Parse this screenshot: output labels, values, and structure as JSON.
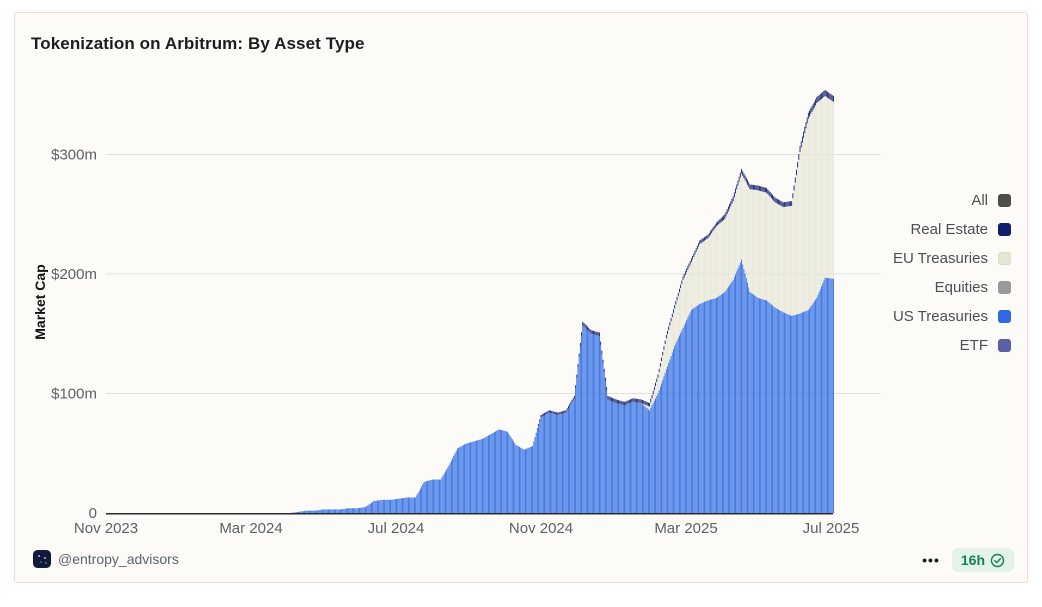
{
  "card": {
    "title": "Tokenization on Arbitrum: By Asset Type",
    "footer": {
      "handle": "@entropy_advisors",
      "more_label": "•••",
      "age_badge": "16h"
    }
  },
  "legend": {
    "position": "right",
    "items": [
      {
        "label": "All",
        "color": "#4d4d4d"
      },
      {
        "label": "Real Estate",
        "color": "#101c6e"
      },
      {
        "label": "EU Treasuries",
        "color": "#e6e5d3"
      },
      {
        "label": "Equities",
        "color": "#9a9a9a"
      },
      {
        "label": "US Treasuries",
        "color": "#2d6ae3"
      },
      {
        "label": "ETF",
        "color": "#5a5fa9"
      }
    ]
  },
  "chart_data": {
    "type": "bar",
    "stacked": true,
    "title": "Tokenization on Arbitrum: By Asset Type",
    "ylabel": "Market Cap",
    "unit": "USD millions",
    "grid": "horizontal",
    "ylim": [
      0,
      375
    ],
    "x_unit": "weeks from Nov 2023 (values in $m, weekly estimates)",
    "x_ticks": [
      {
        "label": "Nov 2023",
        "month_offset": 0
      },
      {
        "label": "Mar 2024",
        "month_offset": 4
      },
      {
        "label": "Jul 2024",
        "month_offset": 8
      },
      {
        "label": "Nov 2024",
        "month_offset": 12
      },
      {
        "label": "Mar 2025",
        "month_offset": 16
      },
      {
        "label": "Jul 2025",
        "month_offset": 20
      }
    ],
    "y_ticks": [
      {
        "label": "$300m",
        "value": 300
      },
      {
        "label": "$200m",
        "value": 200
      },
      {
        "label": "$100m",
        "value": 100
      },
      {
        "label": "0",
        "value": 0
      }
    ],
    "series": [
      {
        "name": "US Treasuries",
        "color": "#2d6ae3",
        "values": [
          0,
          0,
          0,
          0,
          0,
          0,
          0,
          0,
          0,
          0,
          0,
          0,
          0,
          0,
          0,
          0,
          0,
          0,
          0,
          0,
          0,
          0,
          0,
          1,
          2,
          2,
          3,
          3,
          3,
          4,
          4,
          5,
          10,
          11,
          11,
          12,
          13,
          13,
          26,
          28,
          28,
          40,
          54,
          58,
          60,
          62,
          66,
          70,
          68,
          57,
          53,
          56,
          80,
          84,
          82,
          84,
          96,
          157,
          150,
          148,
          95,
          92,
          90,
          93,
          92,
          86,
          100,
          120,
          140,
          155,
          170,
          175,
          178,
          180,
          185,
          195,
          212,
          185,
          180,
          178,
          172,
          168,
          165,
          167,
          170,
          180,
          197,
          196
        ]
      },
      {
        "name": "EU Treasuries",
        "color": "#e8e7d8",
        "values": [
          0,
          0,
          0,
          0,
          0,
          0,
          0,
          0,
          0,
          0,
          0,
          0,
          0,
          0,
          0,
          0,
          0,
          0,
          0,
          0,
          0,
          0,
          0,
          0,
          0,
          0,
          0,
          0,
          0,
          0,
          0,
          0,
          0,
          0,
          0,
          0,
          0,
          0,
          0,
          0,
          0,
          0,
          0,
          0,
          0,
          0,
          0,
          0,
          0,
          0,
          0,
          0,
          0,
          0,
          0,
          0,
          0,
          0,
          0,
          0,
          0,
          0,
          0,
          0,
          0,
          3,
          13,
          26,
          31,
          40,
          40,
          50,
          52,
          60,
          61,
          66,
          72,
          86,
          90,
          90,
          88,
          88,
          92,
          135,
          160,
          163,
          152,
          148
        ]
      },
      {
        "name": "Real Estate",
        "color": "#101c6e",
        "values": [
          0,
          0,
          0,
          0,
          0,
          0,
          0,
          0,
          0,
          0,
          0,
          0,
          0,
          0,
          0,
          0,
          0,
          0,
          0,
          0,
          0,
          0,
          0,
          0,
          0,
          0,
          0,
          0,
          0,
          0,
          0,
          0,
          0,
          0,
          0,
          0,
          0,
          0,
          0,
          0,
          0,
          0,
          0,
          0,
          0,
          0,
          0,
          0,
          0,
          0,
          0,
          0,
          2,
          2,
          2,
          2,
          2,
          3,
          3,
          3,
          3,
          3,
          3,
          3,
          3,
          3,
          3,
          3,
          3,
          3,
          3,
          3,
          3,
          3,
          4,
          4,
          4,
          4,
          4,
          4,
          4,
          4,
          4,
          5,
          5,
          5,
          5,
          5
        ]
      }
    ]
  },
  "colors": {
    "card_background": "#fdfbf8",
    "card_border": "#f2dcd2",
    "gridline": "#e3e1dc",
    "axis_line": "#2a2a2a",
    "tick_text": "#5d6166",
    "badge_background": "#e3f3e9",
    "badge_text": "#157f53"
  }
}
